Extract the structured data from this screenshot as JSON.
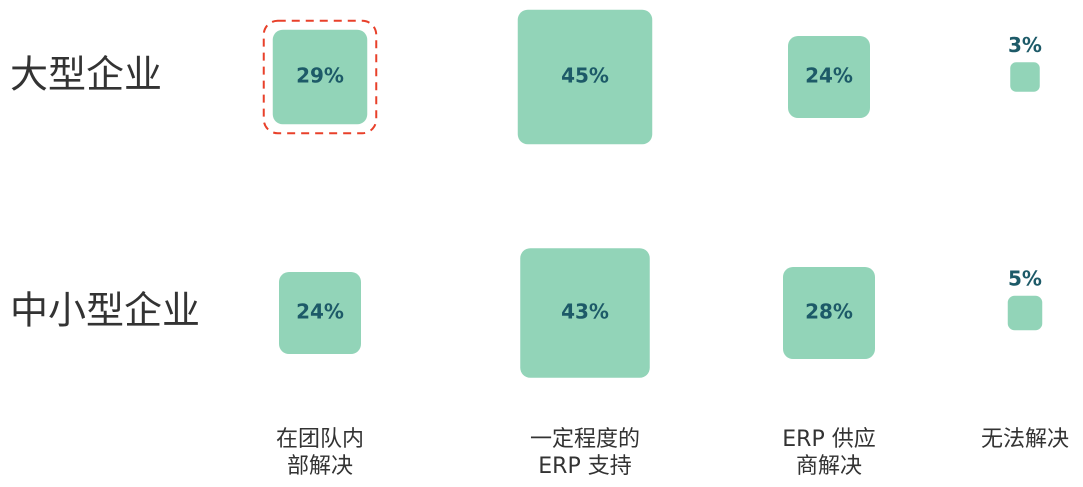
{
  "chart_data": {
    "type": "square",
    "categories": [
      [
        "在团队内",
        "部解决"
      ],
      [
        "一定程度的",
        "ERP 支持"
      ],
      [
        "ERP 供应",
        "商解决"
      ],
      [
        "无法解决"
      ]
    ],
    "series": [
      {
        "name": "大型企业",
        "values": [
          29,
          45,
          24,
          3
        ],
        "value_labels": [
          "29%",
          "45%",
          "24%",
          "3%"
        ]
      },
      {
        "name": "中小型企业",
        "values": [
          24,
          43,
          28,
          5
        ],
        "value_labels": [
          "24%",
          "43%",
          "28%",
          "5%"
        ]
      }
    ],
    "color": "#92d4b8",
    "label_color": "#1d5a68"
  }
}
